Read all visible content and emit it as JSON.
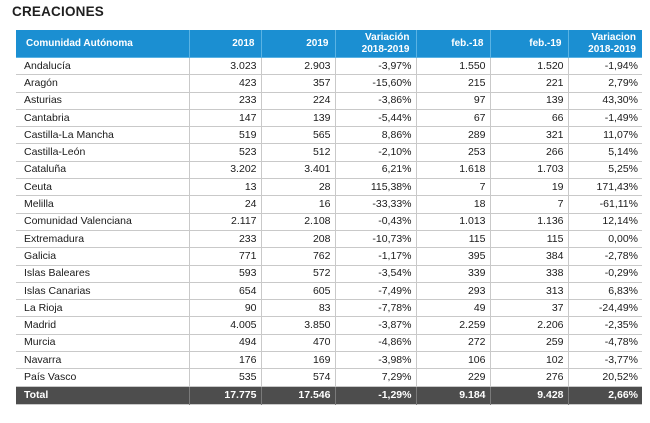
{
  "title": "CREACIONES",
  "headers": [
    "Comunidad Autónoma",
    "2018",
    "2019",
    "Variación 2018-2019",
    "feb.-18",
    "feb.-19",
    "Variacion 2018-2019"
  ],
  "rows": [
    [
      "Andalucía",
      "3.023",
      "2.903",
      "-3,97%",
      "1.550",
      "1.520",
      "-1,94%"
    ],
    [
      "Aragón",
      "423",
      "357",
      "-15,60%",
      "215",
      "221",
      "2,79%"
    ],
    [
      "Asturias",
      "233",
      "224",
      "-3,86%",
      "97",
      "139",
      "43,30%"
    ],
    [
      "Cantabria",
      "147",
      "139",
      "-5,44%",
      "67",
      "66",
      "-1,49%"
    ],
    [
      "Castilla-La Mancha",
      "519",
      "565",
      "8,86%",
      "289",
      "321",
      "11,07%"
    ],
    [
      "Castilla-León",
      "523",
      "512",
      "-2,10%",
      "253",
      "266",
      "5,14%"
    ],
    [
      "Cataluña",
      "3.202",
      "3.401",
      "6,21%",
      "1.618",
      "1.703",
      "5,25%"
    ],
    [
      "Ceuta",
      "13",
      "28",
      "115,38%",
      "7",
      "19",
      "171,43%"
    ],
    [
      "Melilla",
      "24",
      "16",
      "-33,33%",
      "18",
      "7",
      "-61,11%"
    ],
    [
      "Comunidad Valenciana",
      "2.117",
      "2.108",
      "-0,43%",
      "1.013",
      "1.136",
      "12,14%"
    ],
    [
      "Extremadura",
      "233",
      "208",
      "-10,73%",
      "115",
      "115",
      "0,00%"
    ],
    [
      "Galicia",
      "771",
      "762",
      "-1,17%",
      "395",
      "384",
      "-2,78%"
    ],
    [
      "Islas Baleares",
      "593",
      "572",
      "-3,54%",
      "339",
      "338",
      "-0,29%"
    ],
    [
      "Islas Canarias",
      "654",
      "605",
      "-7,49%",
      "293",
      "313",
      "6,83%"
    ],
    [
      "La Rioja",
      "90",
      "83",
      "-7,78%",
      "49",
      "37",
      "-24,49%"
    ],
    [
      "Madrid",
      "4.005",
      "3.850",
      "-3,87%",
      "2.259",
      "2.206",
      "-2,35%"
    ],
    [
      "Murcia",
      "494",
      "470",
      "-4,86%",
      "272",
      "259",
      "-4,78%"
    ],
    [
      "Navarra",
      "176",
      "169",
      "-3,98%",
      "106",
      "102",
      "-3,77%"
    ],
    [
      "País Vasco",
      "535",
      "574",
      "7,29%",
      "229",
      "276",
      "20,52%"
    ]
  ],
  "total": [
    "Total",
    "17.775",
    "17.546",
    "-1,29%",
    "9.184",
    "9.428",
    "2,66%"
  ]
}
